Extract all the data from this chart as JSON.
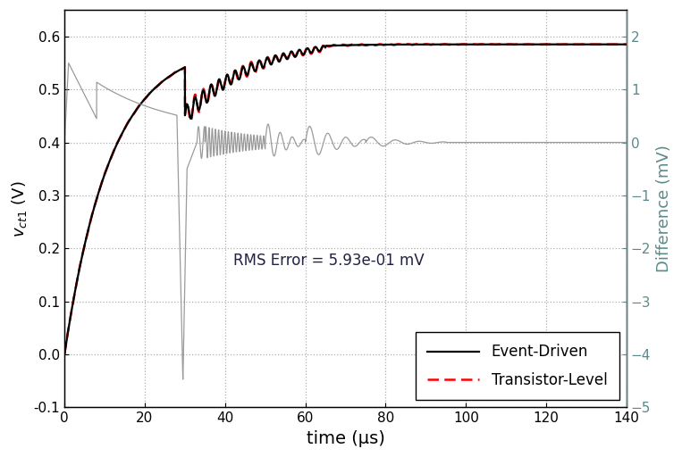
{
  "title": "",
  "xlabel": "time (μs)",
  "ylabel_left": "$v_{ct1}$ (V)",
  "ylabel_right": "Difference (mV)",
  "xlim": [
    0,
    140
  ],
  "ylim_left": [
    -0.1,
    0.65
  ],
  "ylim_right": [
    -5,
    2.5
  ],
  "yticks_left": [
    -0.1,
    0.0,
    0.1,
    0.2,
    0.3,
    0.4,
    0.5,
    0.6
  ],
  "yticks_right": [
    -5,
    -4,
    -3,
    -2,
    -1,
    0,
    1,
    2
  ],
  "xticks": [
    0,
    20,
    40,
    60,
    80,
    100,
    120,
    140
  ],
  "rms_text": "RMS Error = 5.93e-01 mV",
  "rms_x": 0.47,
  "rms_y": 0.37,
  "grid_color": "#b0b0b0",
  "line_black_color": "#000000",
  "line_red_color": "#ff0000",
  "line_gray_color": "#808080",
  "diff_gray_color": "#909090",
  "background_color": "#ffffff",
  "right_axis_color": "#5a8a8a"
}
